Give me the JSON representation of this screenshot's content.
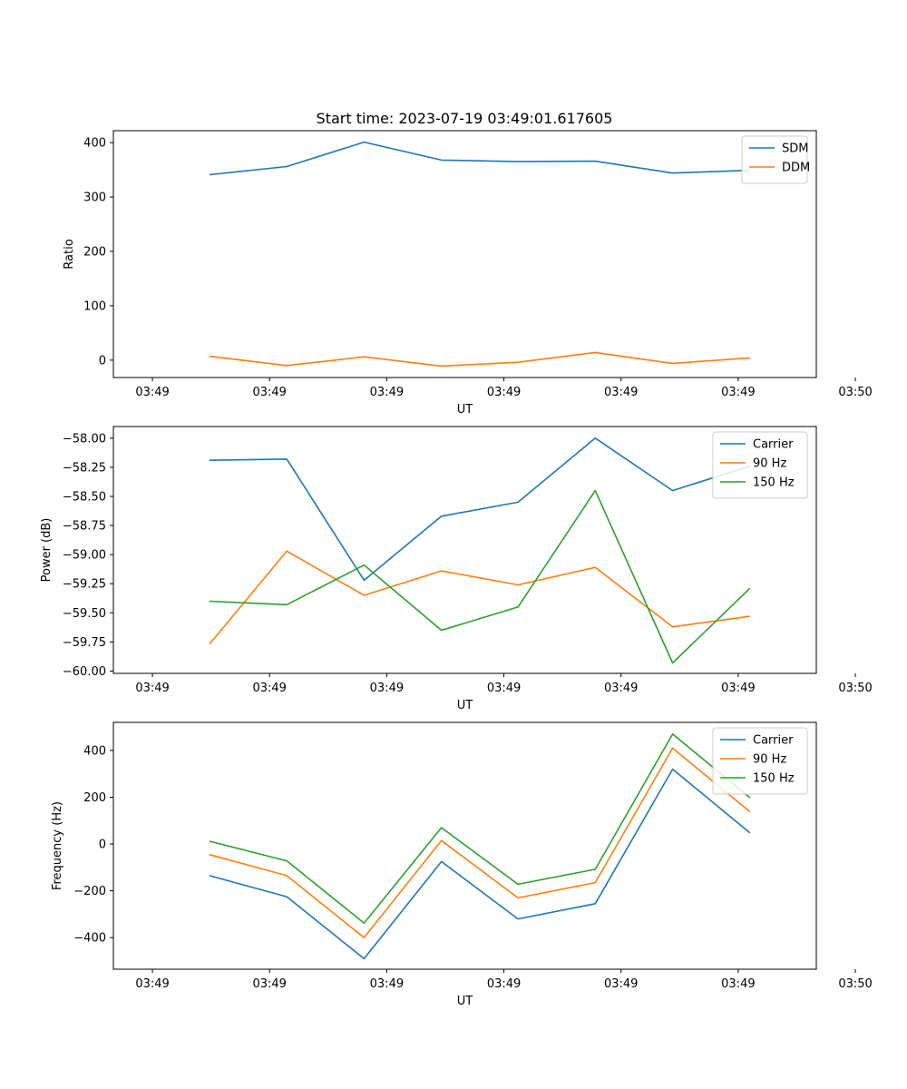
{
  "figure": {
    "title": "Start time: 2023-07-19 03:49:01.617605"
  },
  "chart_data": [
    {
      "type": "line",
      "ylabel": "Ratio",
      "xlabel": "UT",
      "ylim": [
        -32,
        422
      ],
      "yticks": [
        0,
        100,
        200,
        300,
        400
      ],
      "xlim": [
        -0.5,
        8.5
      ],
      "xticks": [
        0,
        1.5,
        3,
        4.5,
        6,
        7.5
      ],
      "xtick_labels": [
        "03:49",
        "03:49",
        "03:49",
        "03:49",
        "03:49",
        "03:49"
      ],
      "xtick_last": {
        "x": 9,
        "label": "03:50"
      },
      "x": [
        0.73,
        1.72,
        2.71,
        3.7,
        4.68,
        5.67,
        6.66,
        7.65
      ],
      "legend": {
        "loc": "upper right"
      },
      "series": [
        {
          "name": "SDM",
          "color": "#1f77b4",
          "values": [
            341,
            356,
            401,
            368,
            365,
            366,
            344,
            349
          ]
        },
        {
          "name": "DDM",
          "color": "#ff7f0e",
          "values": [
            7,
            -10,
            6,
            -11,
            -4,
            14,
            -6,
            4
          ]
        }
      ]
    },
    {
      "type": "line",
      "ylabel": "Power (dB)",
      "xlabel": "UT",
      "ylim": [
        -60.02,
        -57.9
      ],
      "yticks": [
        -60.0,
        -59.75,
        -59.5,
        -59.25,
        -59.0,
        -58.75,
        -58.5,
        -58.25,
        -58.0
      ],
      "ytick_labels": [
        "−60.00",
        "−59.75",
        "−59.50",
        "−59.25",
        "−59.00",
        "−58.75",
        "−58.50",
        "−58.25",
        "−58.00"
      ],
      "xlim": [
        -0.5,
        8.5
      ],
      "xticks": [
        0,
        1.5,
        3,
        4.5,
        6,
        7.5
      ],
      "xtick_labels": [
        "03:49",
        "03:49",
        "03:49",
        "03:49",
        "03:49",
        "03:49"
      ],
      "xtick_last": {
        "x": 9,
        "label": "03:50"
      },
      "x": [
        0.73,
        1.72,
        2.71,
        3.7,
        4.68,
        5.67,
        6.66,
        7.65
      ],
      "legend": {
        "loc": "upper right"
      },
      "series": [
        {
          "name": "Carrier",
          "color": "#1f77b4",
          "values": [
            -58.19,
            -58.18,
            -59.22,
            -58.67,
            -58.55,
            -58.0,
            -58.45,
            -58.24
          ]
        },
        {
          "name": "90 Hz",
          "color": "#ff7f0e",
          "values": [
            -59.77,
            -58.97,
            -59.35,
            -59.14,
            -59.26,
            -59.11,
            -59.62,
            -59.53
          ]
        },
        {
          "name": "150 Hz",
          "color": "#2ca02c",
          "values": [
            -59.4,
            -59.43,
            -59.09,
            -59.65,
            -59.45,
            -58.45,
            -59.93,
            -59.29
          ]
        }
      ]
    },
    {
      "type": "line",
      "ylabel": "Frequency (Hz)",
      "xlabel": "UT",
      "ylim": [
        -535,
        520
      ],
      "yticks": [
        -400,
        -200,
        0,
        200,
        400
      ],
      "ytick_labels": [
        "−400",
        "−200",
        "0",
        "200",
        "400"
      ],
      "xlim": [
        -0.5,
        8.5
      ],
      "xticks": [
        0,
        1.5,
        3,
        4.5,
        6,
        7.5
      ],
      "xtick_labels": [
        "03:49",
        "03:49",
        "03:49",
        "03:49",
        "03:49",
        "03:49"
      ],
      "xtick_last": {
        "x": 9,
        "label": "03:50"
      },
      "x": [
        0.73,
        1.72,
        2.71,
        3.7,
        4.68,
        5.67,
        6.66,
        7.65
      ],
      "legend": {
        "loc": "upper right"
      },
      "series": [
        {
          "name": "Carrier",
          "color": "#1f77b4",
          "values": [
            -135,
            -225,
            -490,
            -75,
            -320,
            -255,
            320,
            48
          ]
        },
        {
          "name": "90 Hz",
          "color": "#ff7f0e",
          "values": [
            -45,
            -135,
            -400,
            15,
            -230,
            -165,
            410,
            138
          ]
        },
        {
          "name": "150 Hz",
          "color": "#2ca02c",
          "values": [
            12,
            -72,
            -338,
            70,
            -172,
            -108,
            470,
            198
          ]
        }
      ]
    }
  ]
}
